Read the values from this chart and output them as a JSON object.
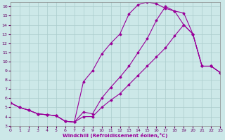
{
  "xlabel": "Windchill (Refroidissement éolien,°C)",
  "background_color": "#cce8e8",
  "grid_color": "#aacccc",
  "line_color": "#990099",
  "xlim": [
    0,
    23
  ],
  "ylim": [
    3,
    16.5
  ],
  "xticks": [
    0,
    1,
    2,
    3,
    4,
    5,
    6,
    7,
    8,
    9,
    10,
    11,
    12,
    13,
    14,
    15,
    16,
    17,
    18,
    19,
    20,
    21,
    22,
    23
  ],
  "yticks": [
    3,
    4,
    5,
    6,
    7,
    8,
    9,
    10,
    11,
    12,
    13,
    14,
    15,
    16
  ],
  "line1_x": [
    0,
    1,
    2,
    3,
    4,
    5,
    6,
    7,
    8,
    9,
    10,
    11,
    12,
    13,
    14,
    15,
    16,
    17,
    18,
    19,
    20,
    21,
    22,
    23
  ],
  "line1_y": [
    5.5,
    5.0,
    4.7,
    4.3,
    4.2,
    4.1,
    3.5,
    3.4,
    7.8,
    9.0,
    10.8,
    12.0,
    13.0,
    15.2,
    16.2,
    16.5,
    16.3,
    15.8,
    15.5,
    15.3,
    13.0,
    9.5,
    9.5,
    8.8
  ],
  "line2_x": [
    0,
    1,
    2,
    3,
    4,
    5,
    6,
    7,
    8,
    9,
    10,
    11,
    12,
    13,
    14,
    15,
    16,
    17,
    18,
    19,
    20,
    21,
    22,
    23
  ],
  "line2_y": [
    5.5,
    5.0,
    4.7,
    4.3,
    4.2,
    4.1,
    3.5,
    3.4,
    4.5,
    4.3,
    6.0,
    7.2,
    8.3,
    9.5,
    11.0,
    12.5,
    14.5,
    16.0,
    15.5,
    14.0,
    13.0,
    9.5,
    9.5,
    8.8
  ],
  "line3_x": [
    0,
    1,
    2,
    3,
    4,
    5,
    6,
    7,
    8,
    9,
    10,
    11,
    12,
    13,
    14,
    15,
    16,
    17,
    18,
    19,
    20,
    21,
    22,
    23
  ],
  "line3_y": [
    5.5,
    5.0,
    4.7,
    4.3,
    4.2,
    4.1,
    3.5,
    3.4,
    4.0,
    4.0,
    5.0,
    5.8,
    6.5,
    7.5,
    8.5,
    9.5,
    10.5,
    11.5,
    12.8,
    14.0,
    13.0,
    9.5,
    9.5,
    8.8
  ]
}
